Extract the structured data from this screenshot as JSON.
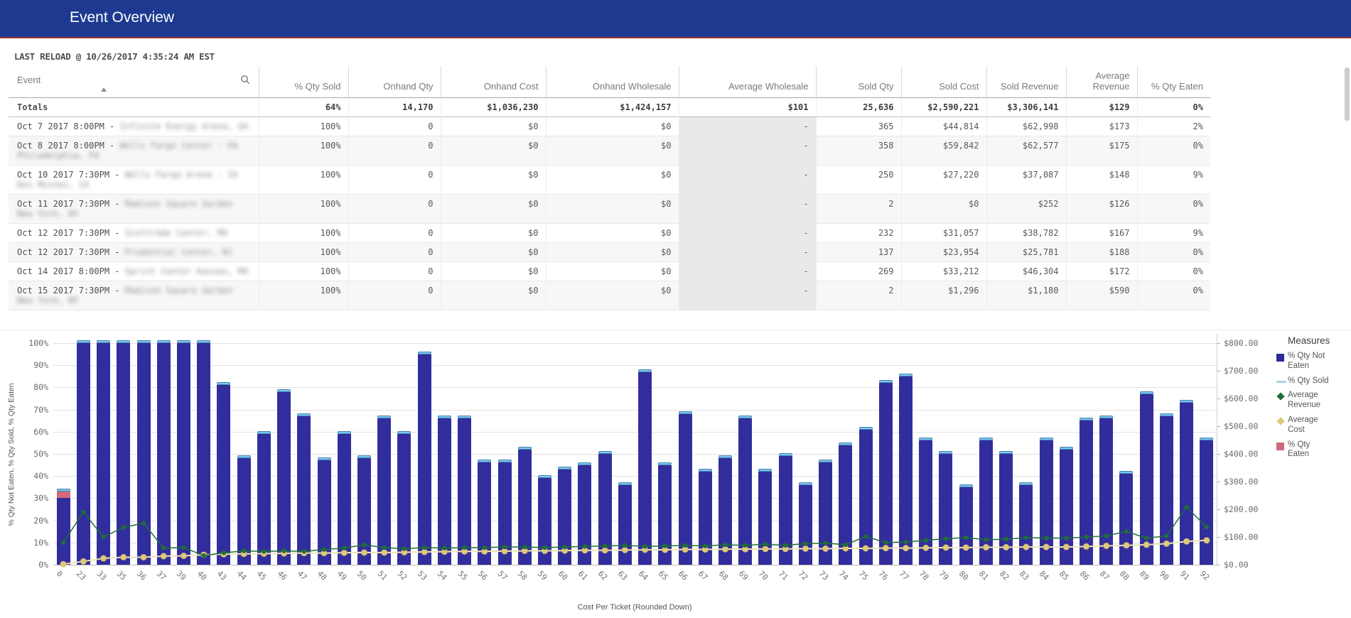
{
  "header": {
    "title": "Event Overview"
  },
  "last_reload": "LAST RELOAD @ 10/26/2017 4:35:24 AM EST",
  "table": {
    "columns": [
      "Event",
      "% Qty Sold",
      "Onhand Qty",
      "Onhand Cost",
      "Onhand Wholesale",
      "Average Wholesale",
      "Sold Qty",
      "Sold Cost",
      "Sold Revenue",
      "Average Revenue",
      "% Qty Eaten"
    ],
    "totals": {
      "label": "Totals",
      "values": [
        "64%",
        "14,170",
        "$1,036,230",
        "$1,424,157",
        "$101",
        "25,636",
        "$2,590,221",
        "$3,306,141",
        "$129",
        "0%"
      ]
    },
    "rows": [
      {
        "event_date": "Oct 7 2017 8:00PM - ",
        "event_name_redacted": "Infinite Energy Arena, GA",
        "values": [
          "100%",
          "0",
          "$0",
          "$0",
          "-",
          "365",
          "$44,814",
          "$62,998",
          "$173",
          "2%"
        ]
      },
      {
        "event_date": "Oct 8 2017 8:00PM - ",
        "event_name_redacted": "Wells Fargo Center - PA Philadelphia, PA",
        "values": [
          "100%",
          "0",
          "$0",
          "$0",
          "-",
          "358",
          "$59,842",
          "$62,577",
          "$175",
          "0%"
        ]
      },
      {
        "event_date": "Oct 10 2017 7:30PM - ",
        "event_name_redacted": "Wells Fargo Arena - IA Des Moines, IA",
        "values": [
          "100%",
          "0",
          "$0",
          "$0",
          "-",
          "250",
          "$27,220",
          "$37,087",
          "$148",
          "9%"
        ]
      },
      {
        "event_date": "Oct 11 2017 7:30PM - ",
        "event_name_redacted": "Madison Square Garden New York, NY",
        "values": [
          "100%",
          "0",
          "$0",
          "$0",
          "-",
          "2",
          "$0",
          "$252",
          "$126",
          "0%"
        ]
      },
      {
        "event_date": "Oct 12 2017 7:30PM - ",
        "event_name_redacted": "Scottrade Center, MO",
        "values": [
          "100%",
          "0",
          "$0",
          "$0",
          "-",
          "232",
          "$31,057",
          "$38,782",
          "$167",
          "9%"
        ]
      },
      {
        "event_date": "Oct 12 2017 7:30PM - ",
        "event_name_redacted": "Prudential Center, NJ",
        "values": [
          "100%",
          "0",
          "$0",
          "$0",
          "-",
          "137",
          "$23,954",
          "$25,781",
          "$188",
          "0%"
        ]
      },
      {
        "event_date": "Oct 14 2017 8:00PM - ",
        "event_name_redacted": "Sprint Center Kansas, MO",
        "values": [
          "100%",
          "0",
          "$0",
          "$0",
          "-",
          "269",
          "$33,212",
          "$46,304",
          "$172",
          "0%"
        ]
      },
      {
        "event_date": "Oct 15 2017 7:30PM - ",
        "event_name_redacted": "Madison Square Garden New York, NY",
        "values": [
          "100%",
          "0",
          "$0",
          "$0",
          "-",
          "2",
          "$1,296",
          "$1,180",
          "$590",
          "0%"
        ]
      }
    ]
  },
  "chart_data": {
    "type": "bar",
    "title": "",
    "xlabel": "Cost Per Ticket (Rounded Down)",
    "ylabel_left": "% Qty Not Eaten, % Qty Sold, % Qty Eaten",
    "ylim_left": [
      0,
      100
    ],
    "ylim_right": [
      0,
      800
    ],
    "left_tick_labels": [
      "0%",
      "10%",
      "20%",
      "30%",
      "40%",
      "50%",
      "60%",
      "70%",
      "80%",
      "90%",
      "100%"
    ],
    "right_tick_labels": [
      "$0.00",
      "$100.00",
      "$200.00",
      "$300.00",
      "$400.00",
      "$500.00",
      "$600.00",
      "$700.00",
      "$800.00"
    ],
    "grid": true,
    "legend_position": "right",
    "categories": [
      "0",
      "23",
      "33",
      "35",
      "36",
      "37",
      "39",
      "40",
      "43",
      "44",
      "45",
      "46",
      "47",
      "48",
      "49",
      "50",
      "51",
      "52",
      "53",
      "54",
      "55",
      "56",
      "57",
      "58",
      "59",
      "60",
      "61",
      "62",
      "63",
      "64",
      "65",
      "66",
      "67",
      "68",
      "69",
      "70",
      "71",
      "72",
      "73",
      "74",
      "75",
      "76",
      "77",
      "78",
      "79",
      "80",
      "81",
      "82",
      "83",
      "84",
      "85",
      "86",
      "87",
      "88",
      "89",
      "90",
      "91",
      "92"
    ],
    "series": [
      {
        "name": "% Qty Not Eaten",
        "type": "bar",
        "axis": "left",
        "color": "#322d9d",
        "values": [
          30,
          100,
          100,
          100,
          100,
          100,
          100,
          100,
          81,
          48,
          59,
          78,
          67,
          47,
          59,
          48,
          66,
          59,
          95,
          66,
          66,
          46,
          46,
          52,
          39,
          43,
          45,
          50,
          36,
          87,
          45,
          68,
          42,
          48,
          66,
          42,
          49,
          36,
          46,
          54,
          61,
          82,
          85,
          56,
          50,
          35,
          56,
          50,
          36,
          56,
          52,
          65,
          66,
          41,
          77,
          67,
          73,
          56
        ]
      },
      {
        "name": "% Qty Eaten",
        "type": "bar",
        "axis": "left",
        "color": "#d2697c",
        "values": [
          3,
          0,
          0,
          0,
          0,
          0,
          0,
          0,
          0,
          0,
          0,
          0,
          0,
          0,
          0,
          0,
          0,
          0,
          0,
          0,
          0,
          0,
          0,
          0,
          0,
          0,
          0,
          0,
          0,
          0,
          0,
          0,
          0,
          0,
          0,
          0,
          0,
          0,
          0,
          0,
          0,
          0,
          0,
          0,
          0,
          0,
          0,
          0,
          0,
          0,
          0,
          0,
          0,
          0,
          0,
          0,
          0,
          0
        ]
      },
      {
        "name": "% Qty Sold",
        "type": "line-cap",
        "axis": "left",
        "color": "#7ecbed",
        "values": [
          33,
          100,
          100,
          100,
          100,
          100,
          100,
          100,
          81,
          48,
          59,
          78,
          67,
          47,
          59,
          48,
          66,
          59,
          95,
          66,
          66,
          46,
          46,
          52,
          39,
          43,
          45,
          50,
          36,
          87,
          45,
          68,
          42,
          48,
          66,
          42,
          49,
          36,
          46,
          54,
          61,
          82,
          85,
          56,
          50,
          35,
          56,
          50,
          36,
          56,
          52,
          65,
          66,
          41,
          77,
          67,
          73,
          56
        ]
      },
      {
        "name": "Average Revenue",
        "type": "line",
        "axis": "right",
        "color": "#1e6e39",
        "values": [
          80,
          190,
          100,
          135,
          150,
          60,
          62,
          33,
          43,
          50,
          48,
          50,
          48,
          55,
          60,
          72,
          62,
          58,
          62,
          60,
          62,
          62,
          64,
          64,
          62,
          64,
          66,
          68,
          70,
          66,
          68,
          70,
          68,
          72,
          70,
          74,
          70,
          76,
          78,
          72,
          102,
          80,
          82,
          88,
          94,
          98,
          90,
          92,
          98,
          96,
          96,
          100,
          104,
          120,
          96,
          104,
          208,
          136
        ]
      },
      {
        "name": "Average Cost",
        "type": "line",
        "axis": "right",
        "color": "#dfc97e",
        "values": [
          2,
          12,
          23,
          27,
          27,
          31,
          32,
          36,
          38,
          39,
          40,
          41,
          42,
          42,
          43,
          44,
          44,
          45,
          46,
          47,
          48,
          48,
          49,
          50,
          50,
          51,
          52,
          52,
          53,
          54,
          54,
          55,
          55,
          56,
          56,
          57,
          57,
          58,
          58,
          59,
          59,
          60,
          60,
          61,
          62,
          62,
          63,
          63,
          64,
          64,
          64,
          66,
          68,
          70,
          72,
          76,
          84,
          88
        ]
      }
    ]
  },
  "legend": {
    "title": "Measures",
    "items": [
      {
        "label": "% Qty Not Eaten",
        "shape": "square",
        "color": "#2e2a99"
      },
      {
        "label": "% Qty Sold",
        "shape": "line",
        "color": "#a9d1e2"
      },
      {
        "label": "Average Revenue",
        "shape": "diamond",
        "color": "#1e6e39"
      },
      {
        "label": "Average Cost",
        "shape": "diamond",
        "color": "#ddc878"
      },
      {
        "label": "% Qty Eaten",
        "shape": "square",
        "color": "#cf6a7e"
      }
    ]
  }
}
